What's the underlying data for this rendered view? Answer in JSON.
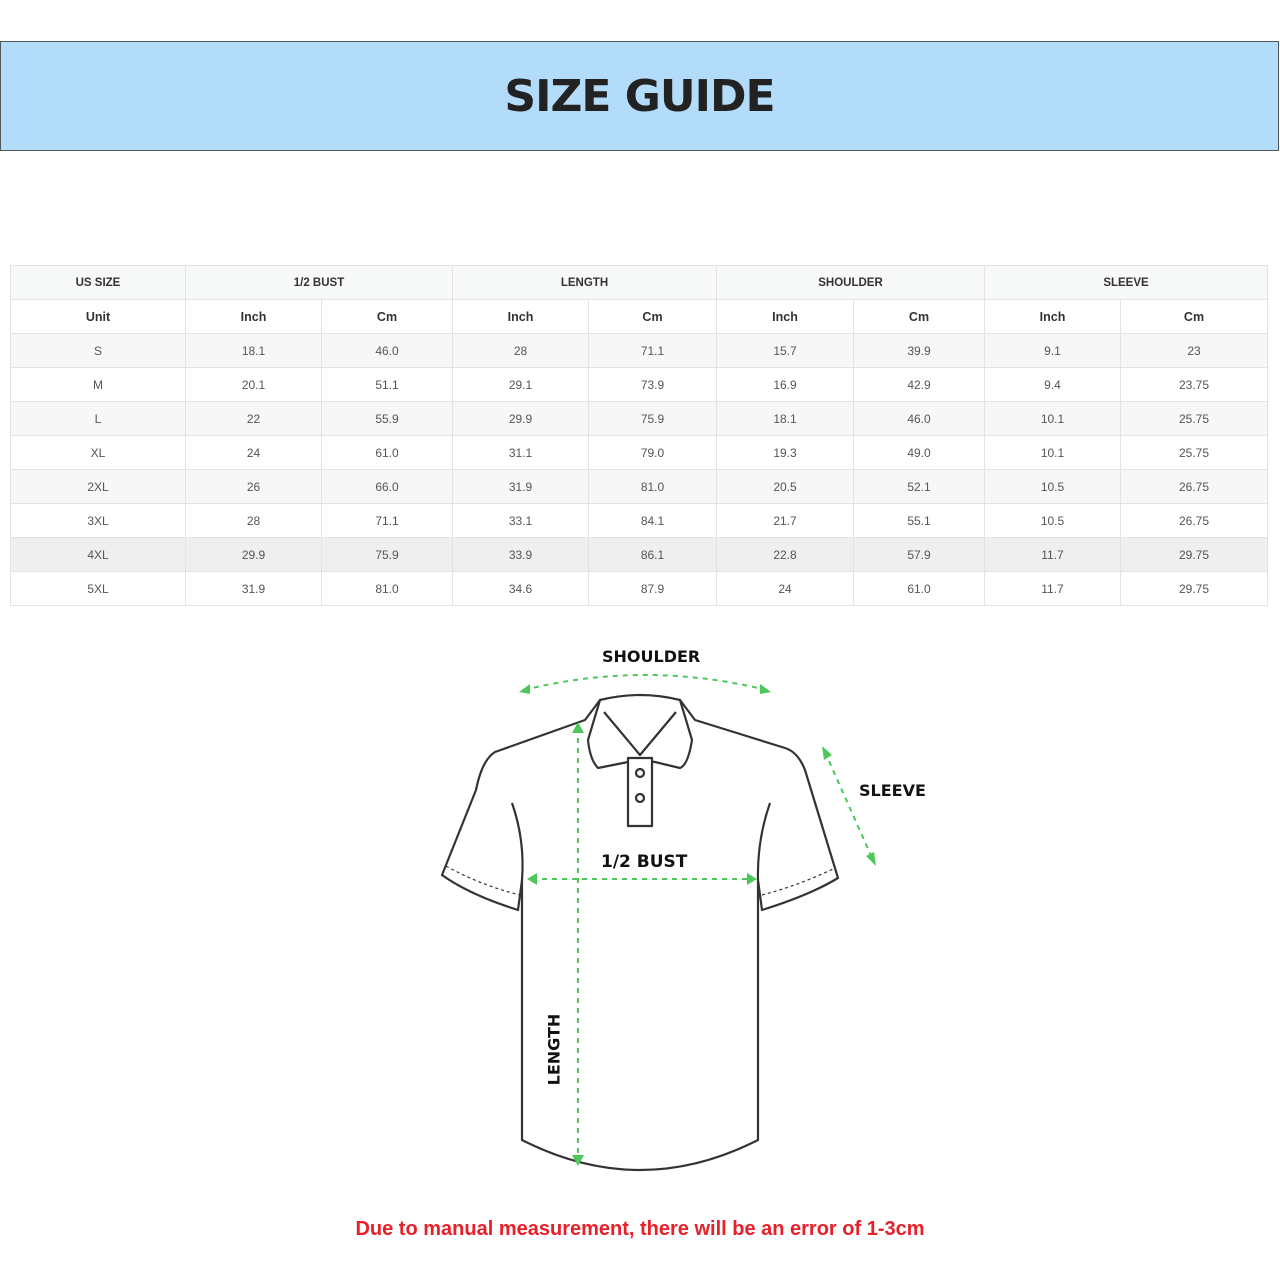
{
  "title": "SIZE GUIDE",
  "table": {
    "group_headers": [
      "US SIZE",
      "1/2 BUST",
      "LENGTH",
      "SHOULDER",
      "SLEEVE"
    ],
    "unit_headers": [
      "Unit",
      "Inch",
      "Cm",
      "Inch",
      "Cm",
      "Inch",
      "Cm",
      "Inch",
      "Cm"
    ],
    "rows": [
      [
        "S",
        "18.1",
        "46.0",
        "28",
        "71.1",
        "15.7",
        "39.9",
        "9.1",
        "23"
      ],
      [
        "M",
        "20.1",
        "51.1",
        "29.1",
        "73.9",
        "16.9",
        "42.9",
        "9.4",
        "23.75"
      ],
      [
        "L",
        "22",
        "55.9",
        "29.9",
        "75.9",
        "18.1",
        "46.0",
        "10.1",
        "25.75"
      ],
      [
        "XL",
        "24",
        "61.0",
        "31.1",
        "79.0",
        "19.3",
        "49.0",
        "10.1",
        "25.75"
      ],
      [
        "2XL",
        "26",
        "66.0",
        "31.9",
        "81.0",
        "20.5",
        "52.1",
        "10.5",
        "26.75"
      ],
      [
        "3XL",
        "28",
        "71.1",
        "33.1",
        "84.1",
        "21.7",
        "55.1",
        "10.5",
        "26.75"
      ],
      [
        "4XL",
        "29.9",
        "75.9",
        "33.9",
        "86.1",
        "22.8",
        "57.9",
        "11.7",
        "29.75"
      ],
      [
        "5XL",
        "31.9",
        "81.0",
        "34.6",
        "87.9",
        "24",
        "61.0",
        "11.7",
        "29.75"
      ]
    ]
  },
  "diagram": {
    "shoulder": "SHOULDER",
    "sleeve": "SLEEVE",
    "bust": "1/2 BUST",
    "length": "LENGTH",
    "arrow_color": "#4cc85a"
  },
  "note": "Due to manual measurement, there will be an error of 1-3cm",
  "colors": {
    "banner": "#b3dcfa",
    "note": "#e8202a"
  }
}
